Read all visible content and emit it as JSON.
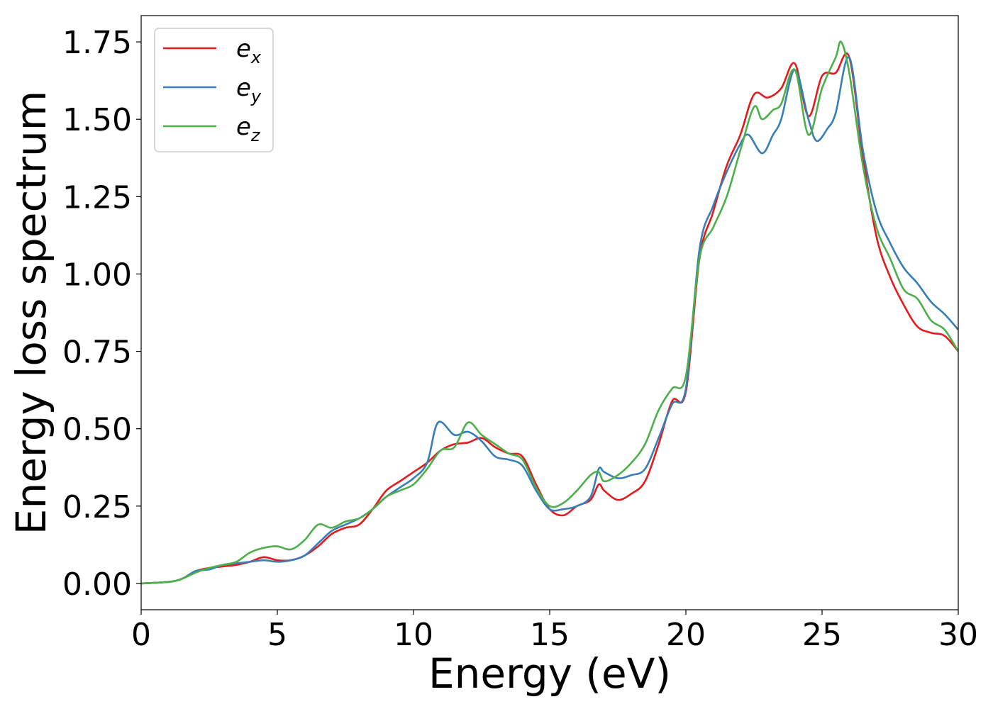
{
  "chart_data": {
    "type": "line",
    "xlabel": "Energy (eV)",
    "ylabel": "Energy loss spectrum",
    "xlim": [
      0,
      30
    ],
    "ylim": [
      -0.085,
      1.835
    ],
    "xticks": [
      0,
      5,
      10,
      15,
      20,
      25,
      30
    ],
    "xtick_labels": [
      "0",
      "5",
      "10",
      "15",
      "20",
      "25",
      "30"
    ],
    "yticks": [
      0.0,
      0.25,
      0.5,
      0.75,
      1.0,
      1.25,
      1.5,
      1.75
    ],
    "ytick_labels": [
      "0.00",
      "0.25",
      "0.50",
      "0.75",
      "1.00",
      "1.25",
      "1.50",
      "1.75"
    ],
    "grid": false,
    "legend_position": "top-left",
    "series": [
      {
        "name": "e",
        "subscript": "x",
        "color": "#e41a1c",
        "x": [
          0,
          1,
          1.5,
          2,
          2.5,
          3,
          3.5,
          4,
          4.5,
          5,
          5.5,
          6,
          6.5,
          7,
          7.5,
          8,
          8.5,
          9,
          9.5,
          10,
          10.5,
          11,
          11.5,
          12,
          12.5,
          13,
          13.5,
          14,
          14.5,
          15,
          15.5,
          16,
          16.5,
          16.8,
          17,
          17.5,
          18,
          18.5,
          19,
          19.5,
          20,
          20.5,
          21,
          21.5,
          22,
          22.5,
          23,
          23.5,
          24,
          24.5,
          25,
          25.5,
          26,
          26.5,
          27,
          27.5,
          28,
          28.5,
          29,
          29.5,
          30
        ],
        "y": [
          0.0,
          0.005,
          0.015,
          0.04,
          0.05,
          0.055,
          0.06,
          0.07,
          0.085,
          0.075,
          0.075,
          0.09,
          0.12,
          0.16,
          0.18,
          0.19,
          0.24,
          0.3,
          0.33,
          0.36,
          0.39,
          0.43,
          0.45,
          0.455,
          0.47,
          0.44,
          0.42,
          0.41,
          0.32,
          0.24,
          0.22,
          0.25,
          0.27,
          0.32,
          0.3,
          0.27,
          0.29,
          0.33,
          0.45,
          0.59,
          0.62,
          1.05,
          1.2,
          1.35,
          1.45,
          1.58,
          1.57,
          1.6,
          1.68,
          1.51,
          1.64,
          1.65,
          1.7,
          1.38,
          1.12,
          0.99,
          0.9,
          0.83,
          0.81,
          0.8,
          0.75
        ]
      },
      {
        "name": "e",
        "subscript": "y",
        "color": "#377eb8",
        "x": [
          0,
          1,
          1.5,
          2,
          2.5,
          3,
          3.5,
          4,
          4.5,
          5,
          5.5,
          6,
          6.5,
          7,
          7.5,
          8,
          8.5,
          9,
          9.5,
          10,
          10.5,
          10.9,
          11.5,
          12,
          12.5,
          13,
          13.5,
          14,
          14.5,
          15,
          15.5,
          16,
          16.5,
          16.8,
          17,
          17.5,
          18,
          18.5,
          19,
          19.5,
          20,
          20.5,
          21,
          21.5,
          22,
          22.3,
          22.8,
          23.2,
          23.5,
          24,
          24.5,
          24.8,
          25.2,
          25.5,
          26,
          26.5,
          27,
          27.5,
          28,
          28.5,
          29,
          29.5,
          30
        ],
        "y": [
          0.0,
          0.005,
          0.015,
          0.04,
          0.045,
          0.06,
          0.065,
          0.07,
          0.075,
          0.07,
          0.075,
          0.09,
          0.13,
          0.17,
          0.19,
          0.21,
          0.24,
          0.28,
          0.31,
          0.34,
          0.39,
          0.52,
          0.48,
          0.49,
          0.46,
          0.41,
          0.4,
          0.38,
          0.3,
          0.24,
          0.24,
          0.25,
          0.28,
          0.37,
          0.36,
          0.34,
          0.35,
          0.37,
          0.47,
          0.58,
          0.63,
          1.08,
          1.22,
          1.33,
          1.42,
          1.45,
          1.39,
          1.45,
          1.5,
          1.66,
          1.5,
          1.43,
          1.47,
          1.52,
          1.7,
          1.4,
          1.2,
          1.1,
          1.02,
          0.97,
          0.91,
          0.87,
          0.82
        ]
      },
      {
        "name": "e",
        "subscript": "z",
        "color": "#4daf4a",
        "x": [
          0,
          1,
          1.5,
          2,
          2.5,
          3,
          3.5,
          4,
          4.5,
          5,
          5.5,
          6,
          6.5,
          7,
          7.5,
          8,
          8.5,
          9,
          9.5,
          10,
          10.5,
          11,
          11.5,
          12,
          12.5,
          13,
          13.5,
          14,
          14.5,
          15,
          15.5,
          16,
          16.5,
          16.8,
          17,
          17.5,
          18,
          18.5,
          19,
          19.5,
          20,
          20.5,
          21,
          21.5,
          22,
          22.5,
          22.8,
          23.2,
          23.5,
          24,
          24.5,
          25,
          25.5,
          25.7,
          26,
          26.5,
          27,
          27.5,
          28,
          28.5,
          29,
          29.5,
          30
        ],
        "y": [
          0.0,
          0.005,
          0.015,
          0.035,
          0.05,
          0.06,
          0.07,
          0.1,
          0.115,
          0.12,
          0.11,
          0.14,
          0.19,
          0.18,
          0.2,
          0.21,
          0.24,
          0.28,
          0.3,
          0.32,
          0.37,
          0.43,
          0.44,
          0.52,
          0.48,
          0.45,
          0.42,
          0.4,
          0.31,
          0.25,
          0.26,
          0.3,
          0.35,
          0.36,
          0.33,
          0.35,
          0.39,
          0.45,
          0.56,
          0.63,
          0.67,
          1.05,
          1.15,
          1.25,
          1.4,
          1.54,
          1.5,
          1.53,
          1.55,
          1.66,
          1.45,
          1.6,
          1.7,
          1.75,
          1.65,
          1.35,
          1.15,
          1.05,
          0.95,
          0.92,
          0.85,
          0.82,
          0.75
        ]
      }
    ]
  }
}
